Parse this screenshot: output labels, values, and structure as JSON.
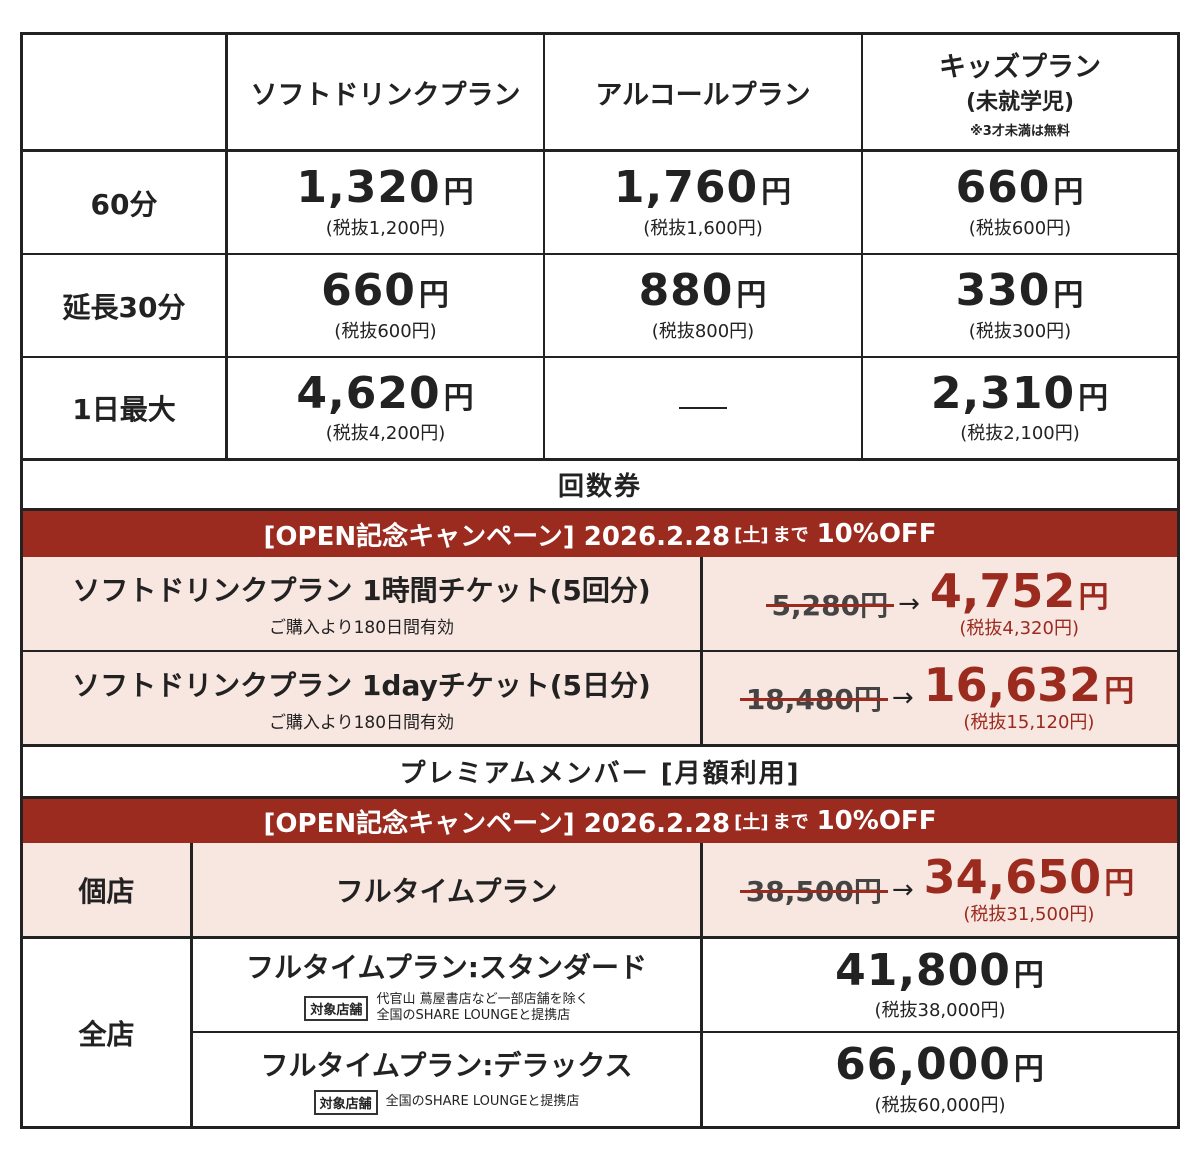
{
  "header": {
    "soft_drink": "ソフトドリンクプラン",
    "alcohol": "アルコールプラン",
    "kids": "キッズプラン",
    "kids_sub": "(未就学児)",
    "kids_note": "※3才未満は無料"
  },
  "rows": [
    {
      "label": "60分",
      "soft": {
        "price": "1,320",
        "tax": "(税抜1,200円)"
      },
      "alcohol": {
        "price": "1,760",
        "tax": "(税抜1,600円)"
      },
      "kids": {
        "price": "660",
        "tax": "(税抜600円)"
      }
    },
    {
      "label": "延長30分",
      "soft": {
        "price": "660",
        "tax": "(税抜600円)"
      },
      "alcohol": {
        "price": "880",
        "tax": "(税抜800円)"
      },
      "kids": {
        "price": "330",
        "tax": "(税抜300円)"
      }
    },
    {
      "label": "1日最大",
      "soft": {
        "price": "4,620",
        "tax": "(税抜4,200円)"
      },
      "kids": {
        "price": "2,310",
        "tax": "(税抜2,100円)"
      }
    }
  ],
  "yen": "円",
  "coupon": {
    "title": "回数券",
    "campaign": {
      "main": "[OPEN記念キャンペーン] 2026.2.28",
      "sat": "[土]",
      "made": "まで",
      "off": "10%OFF"
    },
    "tickets": [
      {
        "name": "ソフトドリンクプラン 1時間チケット(5回分)",
        "note": "ご購入より180日間有効",
        "old": "5,280円",
        "new": "4,752",
        "tax": "(税抜4,320円)"
      },
      {
        "name": "ソフトドリンクプラン 1dayチケット(5日分)",
        "note": "ご購入より180日間有効",
        "old": "18,480円",
        "new": "16,632",
        "tax": "(税抜15,120円)"
      }
    ]
  },
  "premium": {
    "title": "プレミアムメンバー [月額利用]",
    "campaign": {
      "main": "[OPEN記念キャンペーン] 2026.2.28",
      "sat": "[土]",
      "made": "まで",
      "off": "10%OFF"
    },
    "single": {
      "label": "個店",
      "plan": "フルタイムプラン",
      "old": "38,500円",
      "new": "34,650",
      "tax": "(税抜31,500円)"
    },
    "all": {
      "label": "全店",
      "plans": [
        {
          "name": "フルタイムプラン:スタンダード",
          "tag": "対象店舗",
          "note_line1": "代官山 蔦屋書店など一部店舗を除く",
          "note_line2": "全国のSHARE LOUNGEと提携店",
          "price": "41,800",
          "tax": "(税抜38,000円)"
        },
        {
          "name": "フルタイムプラン:デラックス",
          "tag": "対象店舗",
          "note_line1": "全国のSHARE LOUNGEと提携店",
          "price": "66,000",
          "tax": "(税抜60,000円)"
        }
      ]
    }
  },
  "arrow": "→",
  "colors": {
    "accent": "#9b2a1f",
    "pink_bg": "#f8e6e0",
    "border": "#222222"
  }
}
